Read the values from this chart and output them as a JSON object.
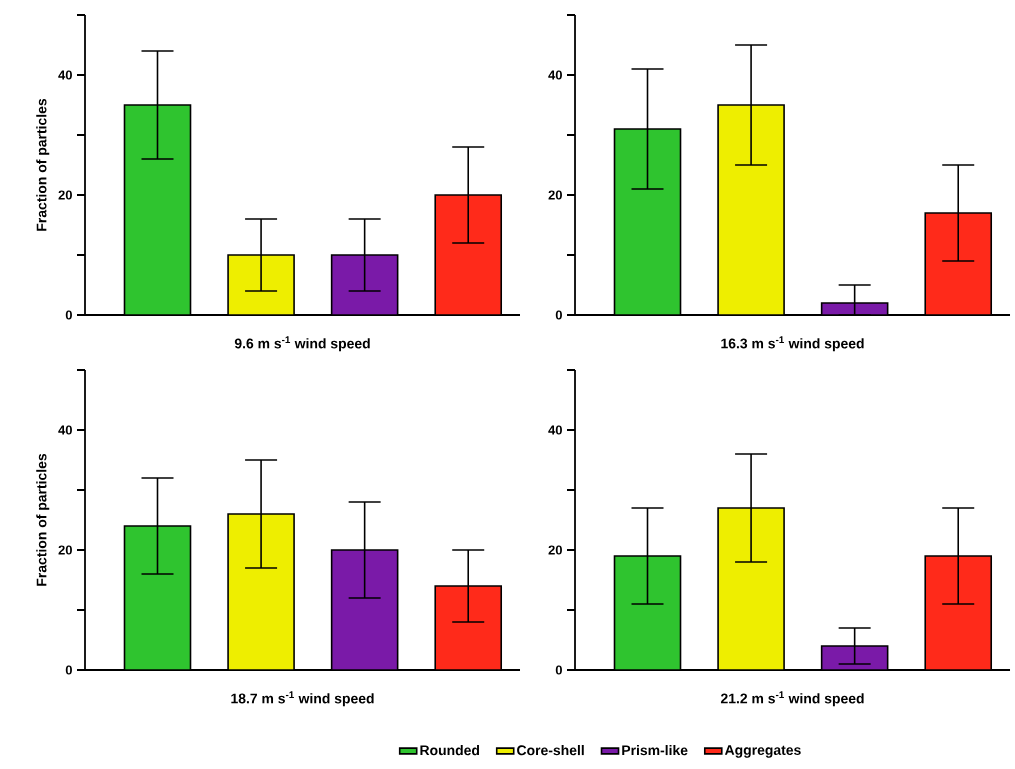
{
  "chart_data": [
    {
      "type": "bar",
      "xlabel": "9.6 m s$^{-1}$ wind speed",
      "ylabel": "Fraction of particles",
      "categories": [
        null,
        null,
        null,
        null
      ],
      "ylim": [
        0,
        50
      ],
      "yticks": [
        0,
        {
          "value": 10,
          "label": null
        },
        20,
        {
          "value": 30,
          "label": null
        },
        40,
        {
          "value": 50,
          "label": null
        }
      ],
      "series": [
        {
          "color": "#2fc42f",
          "values": [
            35,
            null,
            null,
            null
          ],
          "errors": [
            9,
            null,
            null,
            null
          ]
        },
        {
          "color": "#eeee00",
          "values": [
            null,
            10,
            null,
            null
          ],
          "errors": [
            null,
            6,
            null,
            null
          ]
        },
        {
          "color": "#7a1aa8",
          "values": [
            null,
            null,
            10,
            null
          ],
          "errors": [
            null,
            null,
            6,
            null
          ]
        },
        {
          "color": "#ff2a1a",
          "values": [
            null,
            null,
            null,
            20
          ],
          "errors": [
            null,
            null,
            null,
            8
          ]
        }
      ]
    },
    {
      "type": "bar",
      "xlabel": "16.3 m s$^{-1}$ wind speed",
      "categories": [
        null,
        null,
        null,
        null
      ],
      "ylim": [
        0,
        50
      ],
      "yticks": [
        0,
        {
          "value": 10,
          "label": null
        },
        20,
        {
          "value": 30,
          "label": null
        },
        40,
        {
          "value": 50,
          "label": null
        }
      ],
      "series": [
        {
          "color": "#2fc42f",
          "values": [
            31,
            null,
            null,
            null
          ],
          "errors": [
            10,
            null,
            null,
            null
          ]
        },
        {
          "color": "#eeee00",
          "values": [
            null,
            35,
            null,
            null
          ],
          "errors": [
            null,
            10,
            null,
            null
          ]
        },
        {
          "color": "#7a1aa8",
          "values": [
            null,
            null,
            2,
            null
          ],
          "errors": [
            null,
            null,
            [
              0,
              5
            ],
            null
          ]
        },
        {
          "color": "#ff2a1a",
          "values": [
            null,
            null,
            null,
            17
          ],
          "errors": [
            null,
            null,
            null,
            8
          ]
        }
      ]
    },
    {
      "type": "bar",
      "xlabel": "18.7 m s$^{-1}$ wind speed",
      "ylabel": "Fraction of particles",
      "categories": [
        null,
        null,
        null,
        null
      ],
      "ylim": [
        0,
        50
      ],
      "yticks": [
        0,
        {
          "value": 10,
          "label": null
        },
        20,
        {
          "value": 30,
          "label": null
        },
        40,
        {
          "value": 50,
          "label": null
        }
      ],
      "series": [
        {
          "color": "#2fc42f",
          "values": [
            24,
            null,
            null,
            null
          ],
          "errors": [
            8,
            null,
            null,
            null
          ]
        },
        {
          "color": "#eeee00",
          "values": [
            null,
            26,
            null,
            null
          ],
          "errors": [
            null,
            9,
            null,
            null
          ]
        },
        {
          "color": "#7a1aa8",
          "values": [
            null,
            null,
            20,
            null
          ],
          "errors": [
            null,
            null,
            8,
            null
          ]
        },
        {
          "color": "#ff2a1a",
          "values": [
            null,
            null,
            null,
            14
          ],
          "errors": [
            null,
            null,
            null,
            6
          ]
        }
      ]
    },
    {
      "type": "bar",
      "xlabel": "21.2 m s$^{-1}$ wind speed",
      "categories": [
        null,
        null,
        null,
        null
      ],
      "ylim": [
        0,
        50
      ],
      "yticks": [
        0,
        {
          "value": 10,
          "label": null
        },
        20,
        {
          "value": 30,
          "label": null
        },
        40,
        {
          "value": 50,
          "label": null
        }
      ],
      "legend": "bottom",
      "series": [
        {
          "name": "Rounded",
          "color": "#2fc42f",
          "values": [
            19,
            null,
            null,
            null
          ],
          "errors": [
            8,
            null,
            null,
            null
          ]
        },
        {
          "name": "Core-shell",
          "color": "#eeee00",
          "values": [
            null,
            27,
            null,
            null
          ],
          "errors": [
            null,
            9,
            null,
            null
          ]
        },
        {
          "name": "Prism-like",
          "color": "#7a1aa8",
          "values": [
            null,
            null,
            4,
            null
          ],
          "errors": [
            null,
            null,
            [
              1,
              7
            ],
            null
          ]
        },
        {
          "name": "Aggregates",
          "color": "#ff2a1a",
          "values": [
            null,
            null,
            null,
            19
          ],
          "errors": [
            null,
            null,
            null,
            8
          ]
        }
      ]
    }
  ]
}
